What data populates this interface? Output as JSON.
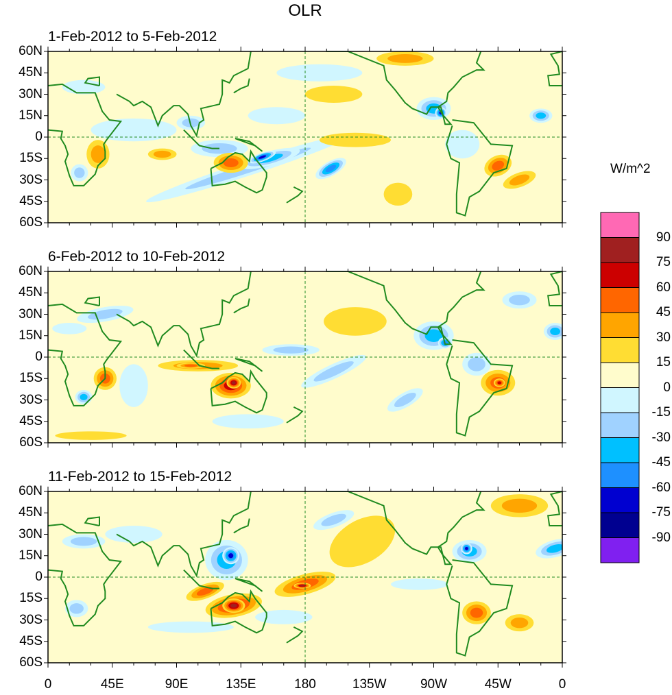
{
  "title": "OLR",
  "panels": [
    {
      "title": "1-Feb-2012 to 5-Feb-2012"
    },
    {
      "title": "6-Feb-2012 to 10-Feb-2012"
    },
    {
      "title": "11-Feb-2012 to 15-Feb-2012"
    }
  ],
  "lat_labels": [
    "60N",
    "45N",
    "30N",
    "15N",
    "0",
    "15S",
    "30S",
    "45S",
    "60S"
  ],
  "lon_labels": [
    "0",
    "45E",
    "90E",
    "135E",
    "180",
    "135W",
    "90W",
    "45W",
    "0"
  ],
  "colorbar": {
    "units": "W/m^2",
    "labels": [
      "90",
      "75",
      "60",
      "45",
      "30",
      "15",
      "0",
      "-15",
      "-30",
      "-45",
      "-60",
      "-75",
      "-90"
    ],
    "colors": [
      "#ff69b4",
      "#a02020",
      "#cc0000",
      "#ff6600",
      "#ffa500",
      "#ffdd33",
      "#fffccc",
      "#d0f6ff",
      "#a0d2ff",
      "#00c0ff",
      "#1e90ff",
      "#0000d0",
      "#000090",
      "#8020f0"
    ]
  },
  "colors": {
    "coast": "#1f8a1f",
    "background": "#fffccc"
  }
}
